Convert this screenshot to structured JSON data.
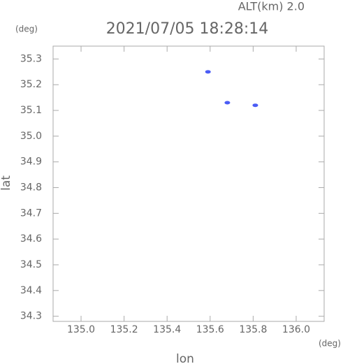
{
  "chart_data": {
    "type": "scatter",
    "title": "2021/07/05 18:28:14",
    "subtitle": "ALT(km) 2.0",
    "xlabel": "lon",
    "ylabel": "lat",
    "x_unit": "(deg)",
    "y_unit": "(deg)",
    "x": [
      135.59,
      135.68,
      135.81
    ],
    "values": [
      35.25,
      35.13,
      35.12
    ],
    "color": "#4a5cf5",
    "xlim": [
      134.87,
      136.13
    ],
    "ylim": [
      34.28,
      35.35
    ],
    "xticks": [
      {
        "value": 135,
        "label": "135.0"
      },
      135.2,
      135.4,
      135.6,
      135.8,
      {
        "value": 136,
        "label": "136.0"
      }
    ],
    "yticks": [
      35.3,
      35.2,
      35.1,
      {
        "value": 35,
        "label": "35.0"
      },
      34.9,
      34.8,
      34.7,
      34.6,
      34.5,
      34.4,
      34.3
    ]
  }
}
